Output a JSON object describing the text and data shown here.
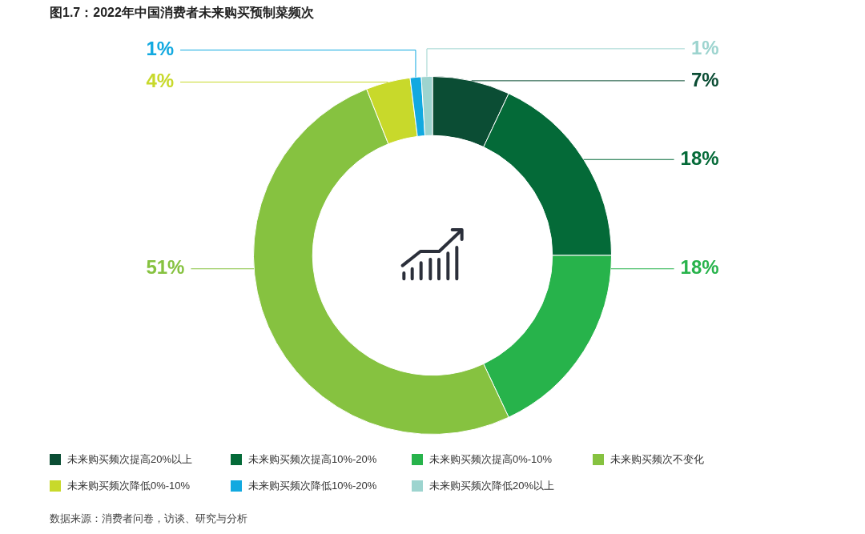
{
  "chart_data": {
    "type": "donut",
    "title": "图1.7：2022年中国消费者未来购买预制菜频次",
    "categories": [
      "未来购买频次提高20%以上",
      "未来购买频次提高10%-20%",
      "未来购买频次提高0%-10%",
      "未来购买频次不变化",
      "未来购买频次降低0%-10%",
      "未来购买频次降低10%-20%",
      "未来购买频次降低20%以上"
    ],
    "values": [
      7,
      18,
      18,
      51,
      4,
      1,
      1
    ],
    "colors": [
      "#0b4d34",
      "#046a38",
      "#27b34b",
      "#86c240",
      "#c8d92b",
      "#12a9e0",
      "#9dd4cf"
    ],
    "value_labels": [
      "7%",
      "18%",
      "18%",
      "51%",
      "4%",
      "1%",
      "1%"
    ],
    "legend": "bottom",
    "annotations": [
      "数据来源：消费者问卷，访谈、研究与分析"
    ]
  }
}
